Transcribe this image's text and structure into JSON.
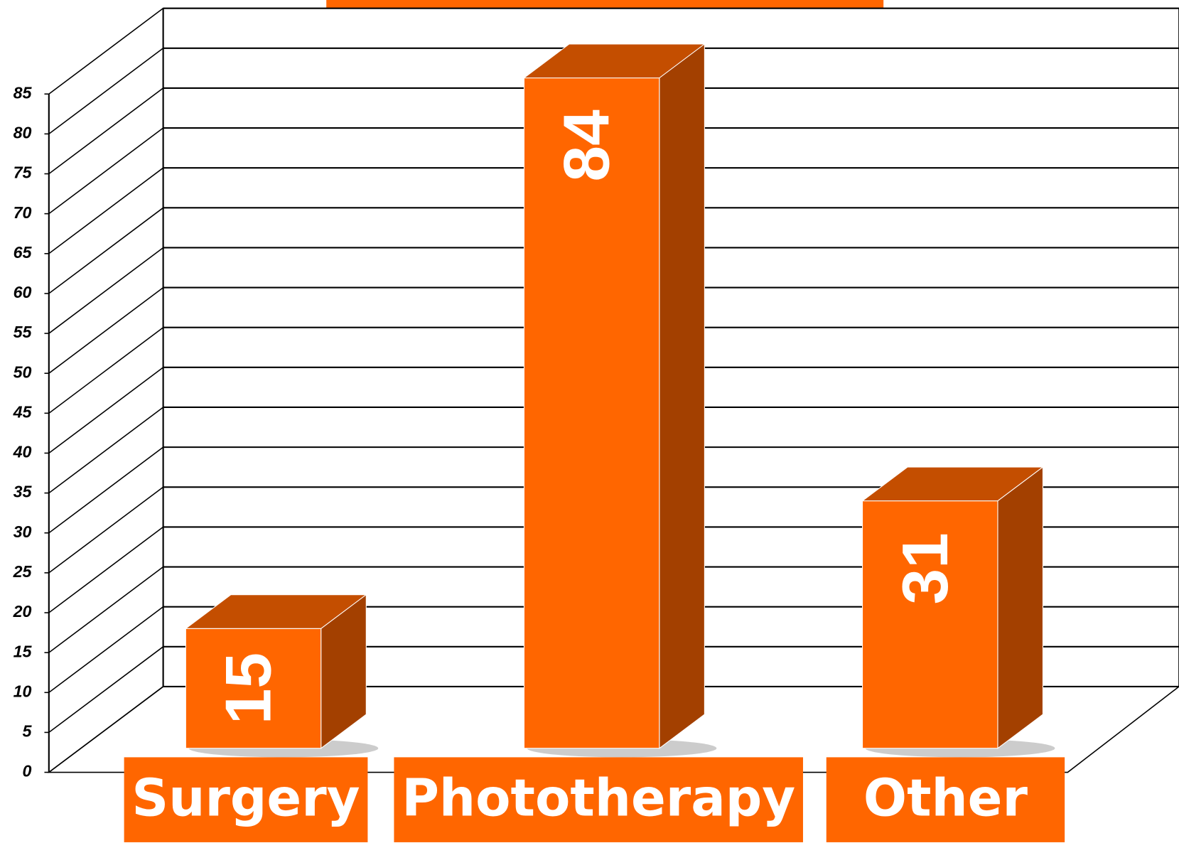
{
  "chart_data": {
    "type": "bar3d",
    "categories": [
      "Surgery",
      "Phototherapy",
      "Other"
    ],
    "values": [
      15,
      84,
      31
    ],
    "color": "#ff6600",
    "ylim": [
      0,
      85
    ],
    "yticks": [
      0,
      5,
      10,
      15,
      20,
      25,
      30,
      35,
      40,
      45,
      50,
      55,
      60,
      65,
      70,
      75,
      80,
      85
    ],
    "grid": true
  }
}
